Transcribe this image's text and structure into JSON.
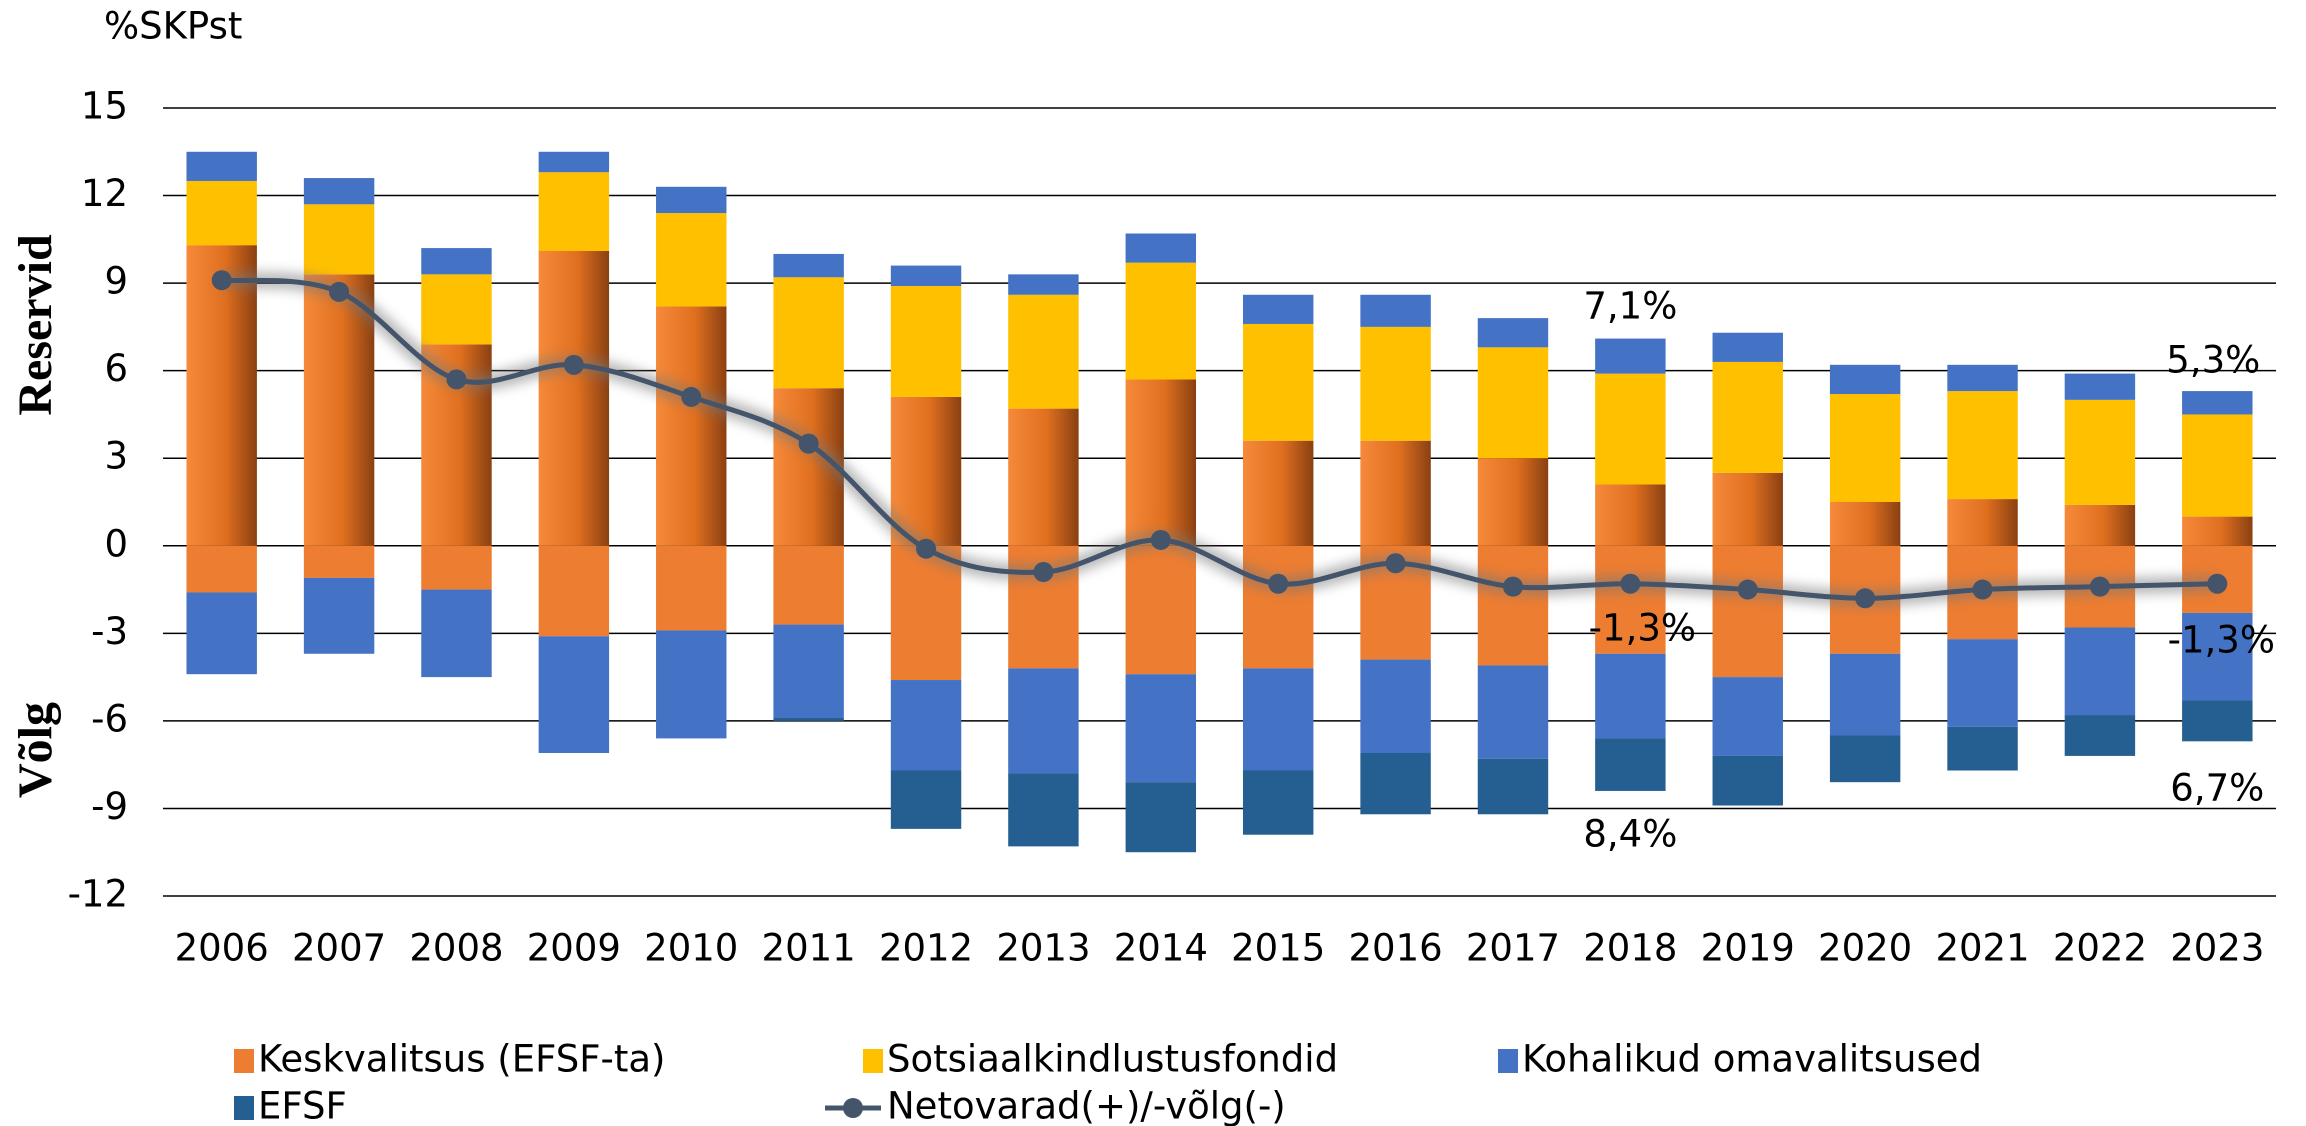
{
  "chart_data": {
    "type": "stacked-bar-line",
    "y_unit": "%SKPst",
    "reserve_label": "Reservid",
    "debt_label": "Võlg",
    "categories": [
      "2006",
      "2007",
      "2008",
      "2009",
      "2010",
      "2011",
      "2012",
      "2013",
      "2014",
      "2015",
      "2016",
      "2017",
      "2018",
      "2019",
      "2020",
      "2021",
      "2022",
      "2023"
    ],
    "ylim": [
      -12,
      15
    ],
    "yticks": [
      -12,
      -9,
      -6,
      -3,
      0,
      3,
      6,
      9,
      12,
      15
    ],
    "grid": true,
    "series": [
      {
        "name": "Keskvalitsus (EFSF-ta)",
        "color": "#ed7d31",
        "values": [
          10.3,
          9.3,
          6.9,
          10.1,
          8.2,
          5.4,
          5.1,
          4.7,
          5.7,
          3.6,
          3.6,
          3.0,
          2.1,
          2.5,
          1.5,
          1.6,
          1.4,
          1.0
        ],
        "debt_values": [
          -1.6,
          -1.1,
          -1.5,
          -3.1,
          -2.9,
          -2.7,
          -4.6,
          -4.2,
          -4.4,
          -4.2,
          -3.9,
          -4.1,
          -3.7,
          -4.5,
          -3.7,
          -3.2,
          -2.8,
          -2.3
        ]
      },
      {
        "name": "Sotsiaalkindlustusfondid",
        "color": "#ffc000",
        "values": [
          2.2,
          2.4,
          2.4,
          2.7,
          3.2,
          3.8,
          3.8,
          3.9,
          4.0,
          4.0,
          3.9,
          3.8,
          3.8,
          3.8,
          3.7,
          3.7,
          3.6,
          3.5
        ]
      },
      {
        "name": "Kohalikud omavalitsused",
        "color": "#4472c4",
        "values": [
          1.0,
          0.9,
          0.9,
          0.7,
          0.9,
          0.8,
          0.7,
          0.7,
          1.0,
          1.0,
          1.1,
          1.0,
          1.2,
          1.0,
          1.0,
          0.9,
          0.9,
          0.8
        ],
        "debt_values": [
          -2.8,
          -2.6,
          -3.0,
          -4.0,
          -3.7,
          -3.2,
          -3.1,
          -3.6,
          -3.7,
          -3.5,
          -3.2,
          -3.2,
          -2.9,
          -2.7,
          -2.8,
          -3.0,
          -3.0,
          -3.0
        ]
      },
      {
        "name": "EFSF",
        "color": "#255e91",
        "debt_values": [
          null,
          null,
          null,
          null,
          null,
          -0.1,
          -2.0,
          -2.5,
          -2.4,
          -2.2,
          -2.1,
          -1.9,
          -1.8,
          -1.7,
          -1.6,
          -1.5,
          -1.4,
          -1.4
        ]
      },
      {
        "name": "Netovarad(+)/-võlg(-)",
        "color": "#44546a",
        "type": "line",
        "values": [
          9.1,
          8.7,
          5.7,
          6.2,
          5.1,
          3.5,
          -0.1,
          -0.9,
          0.2,
          -1.3,
          -0.6,
          -1.4,
          -1.3,
          -1.5,
          -1.8,
          -1.5,
          -1.4,
          -1.3
        ]
      }
    ],
    "annotations": [
      {
        "text": "7,1%"
      },
      {
        "text": "-1,3%"
      },
      {
        "text": "8,4%"
      },
      {
        "text": "5,3%"
      },
      {
        "text": "-1,3%"
      },
      {
        "text": "6,7%"
      }
    ]
  }
}
